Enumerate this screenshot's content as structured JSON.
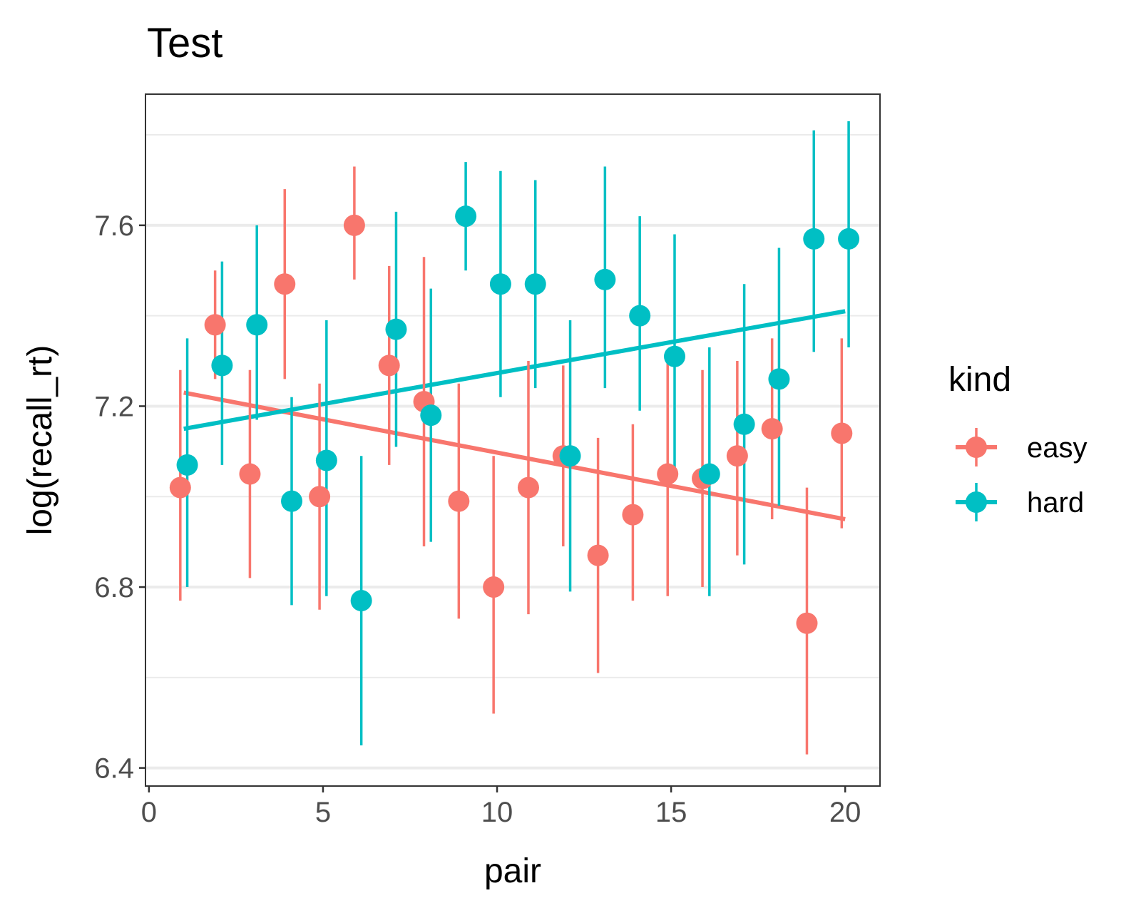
{
  "chart_data": {
    "type": "scatter",
    "title": "Test",
    "xlabel": "pair",
    "ylabel": "log(recall_rt)",
    "xlim": [
      -0.1,
      21.0
    ],
    "ylim": [
      6.36,
      7.89
    ],
    "x_ticks": [
      0,
      5,
      10,
      15,
      20
    ],
    "x_tick_labels": [
      "0",
      "5",
      "10",
      "15",
      "20"
    ],
    "y_ticks": [
      6.4,
      6.8,
      7.2,
      7.6
    ],
    "y_tick_labels": [
      "6.4",
      "6.8",
      "7.2",
      "7.6"
    ],
    "y_minor_gridlines": [
      6.6,
      7.0,
      7.4,
      7.8
    ],
    "grid": "horizontal",
    "legend": {
      "title": "kind",
      "position": "right"
    },
    "series": [
      {
        "name": "easy",
        "color": "#F8766D",
        "points": [
          {
            "x": 1,
            "y": 7.02,
            "ymin": 6.77,
            "ymax": 7.28
          },
          {
            "x": 2,
            "y": 7.38,
            "ymin": 7.26,
            "ymax": 7.5
          },
          {
            "x": 3,
            "y": 7.05,
            "ymin": 6.82,
            "ymax": 7.28
          },
          {
            "x": 4,
            "y": 7.47,
            "ymin": 7.26,
            "ymax": 7.68
          },
          {
            "x": 5,
            "y": 7.0,
            "ymin": 6.75,
            "ymax": 7.25
          },
          {
            "x": 6,
            "y": 7.6,
            "ymin": 7.48,
            "ymax": 7.73
          },
          {
            "x": 7,
            "y": 7.29,
            "ymin": 7.07,
            "ymax": 7.51
          },
          {
            "x": 8,
            "y": 7.21,
            "ymin": 6.89,
            "ymax": 7.53
          },
          {
            "x": 9,
            "y": 6.99,
            "ymin": 6.73,
            "ymax": 7.25
          },
          {
            "x": 10,
            "y": 6.8,
            "ymin": 6.52,
            "ymax": 7.09
          },
          {
            "x": 11,
            "y": 7.02,
            "ymin": 6.74,
            "ymax": 7.3
          },
          {
            "x": 12,
            "y": 7.09,
            "ymin": 6.89,
            "ymax": 7.29
          },
          {
            "x": 13,
            "y": 6.87,
            "ymin": 6.61,
            "ymax": 7.13
          },
          {
            "x": 14,
            "y": 6.96,
            "ymin": 6.77,
            "ymax": 7.16
          },
          {
            "x": 15,
            "y": 7.05,
            "ymin": 6.78,
            "ymax": 7.31
          },
          {
            "x": 16,
            "y": 7.04,
            "ymin": 6.8,
            "ymax": 7.28
          },
          {
            "x": 17,
            "y": 7.09,
            "ymin": 6.87,
            "ymax": 7.3
          },
          {
            "x": 18,
            "y": 7.15,
            "ymin": 6.95,
            "ymax": 7.35
          },
          {
            "x": 19,
            "y": 6.72,
            "ymin": 6.43,
            "ymax": 7.02
          },
          {
            "x": 20,
            "y": 7.14,
            "ymin": 6.93,
            "ymax": 7.35
          }
        ],
        "trend": {
          "x": [
            1,
            20
          ],
          "y": [
            7.23,
            6.95
          ]
        }
      },
      {
        "name": "hard",
        "color": "#00BFC4",
        "points": [
          {
            "x": 1,
            "y": 7.07,
            "ymin": 6.8,
            "ymax": 7.35
          },
          {
            "x": 2,
            "y": 7.29,
            "ymin": 7.07,
            "ymax": 7.52
          },
          {
            "x": 3,
            "y": 7.38,
            "ymin": 7.17,
            "ymax": 7.6
          },
          {
            "x": 4,
            "y": 6.99,
            "ymin": 6.76,
            "ymax": 7.22
          },
          {
            "x": 5,
            "y": 7.08,
            "ymin": 6.78,
            "ymax": 7.39
          },
          {
            "x": 6,
            "y": 6.77,
            "ymin": 6.45,
            "ymax": 7.09
          },
          {
            "x": 7,
            "y": 7.37,
            "ymin": 7.11,
            "ymax": 7.63
          },
          {
            "x": 8,
            "y": 7.18,
            "ymin": 6.9,
            "ymax": 7.46
          },
          {
            "x": 9,
            "y": 7.62,
            "ymin": 7.5,
            "ymax": 7.74
          },
          {
            "x": 10,
            "y": 7.47,
            "ymin": 7.22,
            "ymax": 7.72
          },
          {
            "x": 11,
            "y": 7.47,
            "ymin": 7.24,
            "ymax": 7.7
          },
          {
            "x": 12,
            "y": 7.09,
            "ymin": 6.79,
            "ymax": 7.39
          },
          {
            "x": 13,
            "y": 7.48,
            "ymin": 7.24,
            "ymax": 7.73
          },
          {
            "x": 14,
            "y": 7.4,
            "ymin": 7.19,
            "ymax": 7.62
          },
          {
            "x": 15,
            "y": 7.31,
            "ymin": 7.04,
            "ymax": 7.58
          },
          {
            "x": 16,
            "y": 7.05,
            "ymin": 6.78,
            "ymax": 7.33
          },
          {
            "x": 17,
            "y": 7.16,
            "ymin": 6.85,
            "ymax": 7.47
          },
          {
            "x": 18,
            "y": 7.26,
            "ymin": 6.98,
            "ymax": 7.55
          },
          {
            "x": 19,
            "y": 7.57,
            "ymin": 7.32,
            "ymax": 7.81
          },
          {
            "x": 20,
            "y": 7.57,
            "ymin": 7.33,
            "ymax": 7.83
          }
        ],
        "trend": {
          "x": [
            1,
            20
          ],
          "y": [
            7.15,
            7.41
          ]
        }
      }
    ]
  }
}
